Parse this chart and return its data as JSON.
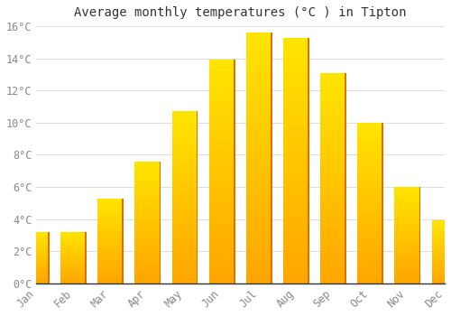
{
  "title": "Average monthly temperatures (°C ) in Tipton",
  "months": [
    "Jan",
    "Feb",
    "Mar",
    "Apr",
    "May",
    "Jun",
    "Jul",
    "Aug",
    "Sep",
    "Oct",
    "Nov",
    "Dec"
  ],
  "values": [
    3.2,
    3.2,
    5.3,
    7.6,
    10.7,
    13.9,
    15.6,
    15.3,
    13.1,
    10.0,
    6.0,
    3.9
  ],
  "bar_color": "#FFA500",
  "bar_color_light": "#FFD700",
  "background_color": "#FFFFFF",
  "grid_color": "#DDDDDD",
  "ylim": [
    0,
    16
  ],
  "yticks": [
    0,
    2,
    4,
    6,
    8,
    10,
    12,
    14,
    16
  ],
  "title_fontsize": 10,
  "tick_fontsize": 8.5
}
